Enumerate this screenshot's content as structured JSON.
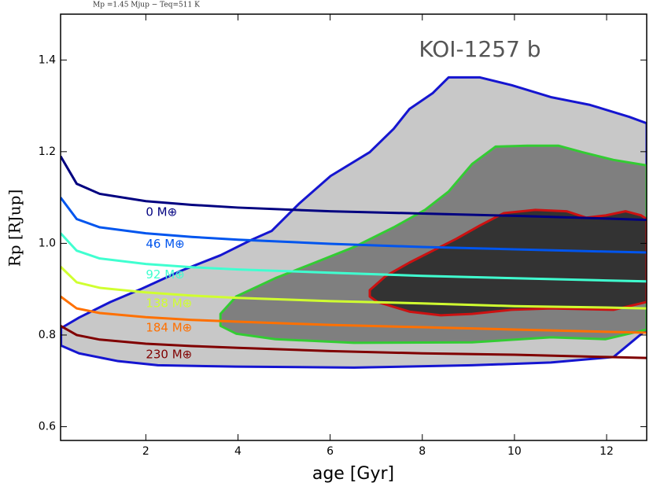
{
  "chart_data": {
    "type": "line",
    "subtitle": "Mp =1.45 Mjup  −  Teq=511 K",
    "annotation": "KOI-1257 b",
    "x_label": "age [Gyr]",
    "y_label": "Rp [RJup]",
    "xlim": [
      0.15,
      12.87
    ],
    "ylim": [
      0.57,
      1.5
    ],
    "xticks": [
      2,
      4,
      6,
      8,
      10,
      12
    ],
    "yticks": [
      0.6,
      0.8,
      {
        "value": 1,
        "label": "1.0"
      },
      1.2,
      1.4
    ],
    "regions": [
      {
        "fill": "#c8c8c8",
        "color": "#1515d0",
        "x": [
          0.16,
          0.55,
          1.23,
          1.91,
          2.76,
          3.62,
          4.3,
          4.73,
          5.33,
          6.01,
          6.86,
          7.38,
          7.72,
          8.23,
          8.57,
          8.74,
          9.25,
          9.94,
          10.79,
          11.64,
          12.49,
          12.87,
          12.87,
          12.15,
          10.79,
          9.08,
          6.52,
          3.96,
          2.26,
          1.4,
          0.55,
          0.16
        ],
        "y": [
          0.815,
          0.838,
          0.872,
          0.901,
          0.94,
          0.974,
          1.008,
          1.027,
          1.087,
          1.147,
          1.199,
          1.25,
          1.293,
          1.328,
          1.362,
          1.362,
          1.362,
          1.345,
          1.319,
          1.302,
          1.276,
          1.262,
          0.812,
          0.752,
          0.74,
          0.734,
          0.729,
          0.731,
          0.734,
          0.743,
          0.76,
          0.777
        ]
      },
      {
        "fill": "#7f7f7f",
        "color": "#33cc33",
        "x": [
          3.62,
          3.96,
          4.81,
          5.67,
          6.52,
          7.38,
          8.06,
          8.57,
          9.08,
          9.59,
          10.28,
          10.96,
          11.47,
          12.15,
          12.87,
          12.87,
          11.98,
          10.79,
          9.08,
          6.52,
          4.81,
          3.96,
          3.62
        ],
        "y": [
          0.846,
          0.884,
          0.924,
          0.958,
          0.992,
          1.035,
          1.073,
          1.113,
          1.173,
          1.211,
          1.213,
          1.213,
          1.199,
          1.182,
          1.17,
          0.812,
          0.791,
          0.795,
          0.784,
          0.783,
          0.791,
          0.803,
          0.82
        ]
      },
      {
        "fill": "#333333",
        "color": "#cc1111",
        "x": [
          6.86,
          7.21,
          7.72,
          8.23,
          8.74,
          9.25,
          9.77,
          10.45,
          11.13,
          11.56,
          11.98,
          12.41,
          12.75,
          12.87,
          12.87,
          12.15,
          10.79,
          9.94,
          9.08,
          8.4,
          7.72,
          7.03,
          6.86
        ],
        "y": [
          0.898,
          0.929,
          0.958,
          0.984,
          1.01,
          1.039,
          1.066,
          1.073,
          1.07,
          1.056,
          1.061,
          1.07,
          1.061,
          1.053,
          0.872,
          0.855,
          0.858,
          0.855,
          0.846,
          0.843,
          0.851,
          0.872,
          0.884
        ]
      }
    ],
    "x": [
      0.15,
      0.5,
      1,
      2,
      3,
      4,
      6,
      8,
      10,
      12,
      12.87
    ],
    "series": [
      {
        "name": "0 M⊕",
        "color": "#000080",
        "values": [
          1.19,
          1.13,
          1.108,
          1.092,
          1.084,
          1.078,
          1.07,
          1.065,
          1.06,
          1.054,
          1.051
        ]
      },
      {
        "name": "46 M⊕",
        "color": "#0055ee",
        "values": [
          1.1,
          1.053,
          1.035,
          1.022,
          1.014,
          1.008,
          0.999,
          0.992,
          0.987,
          0.982,
          0.98
        ]
      },
      {
        "name": "92 M⊕",
        "color": "#40ffd0",
        "values": [
          1.022,
          0.984,
          0.967,
          0.955,
          0.948,
          0.943,
          0.936,
          0.929,
          0.924,
          0.919,
          0.917
        ]
      },
      {
        "name": "138 M⊕",
        "color": "#d0ff30",
        "values": [
          0.949,
          0.915,
          0.903,
          0.893,
          0.886,
          0.881,
          0.874,
          0.869,
          0.863,
          0.86,
          0.858
        ]
      },
      {
        "name": "184 M⊕",
        "color": "#ff7000",
        "values": [
          0.884,
          0.858,
          0.848,
          0.839,
          0.833,
          0.829,
          0.822,
          0.817,
          0.812,
          0.807,
          0.805
        ]
      },
      {
        "name": "230 M⊕",
        "color": "#800000",
        "values": [
          0.82,
          0.8,
          0.79,
          0.781,
          0.776,
          0.772,
          0.765,
          0.76,
          0.757,
          0.752,
          0.75
        ]
      }
    ]
  }
}
